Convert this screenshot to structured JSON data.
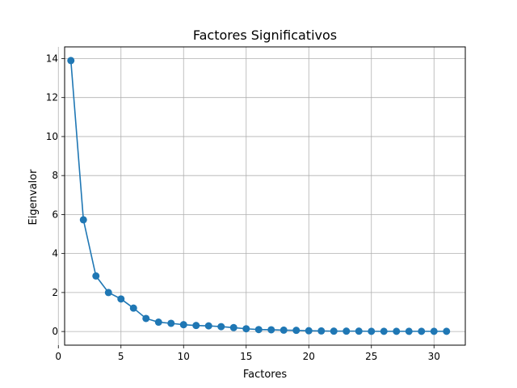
{
  "chart_data": {
    "type": "line",
    "title": "Factores Significativos",
    "xlabel": "Factores",
    "ylabel": "Eigenvalor",
    "xlim": [
      0.5,
      32.5
    ],
    "ylim": [
      -0.7,
      14.6
    ],
    "xticks": [
      0,
      5,
      10,
      15,
      20,
      25,
      30
    ],
    "yticks": [
      0,
      2,
      4,
      6,
      8,
      10,
      12,
      14
    ],
    "grid": true,
    "marker": "circle",
    "series": [
      {
        "color": "#1f77b4",
        "x": [
          1,
          2,
          3,
          4,
          5,
          6,
          7,
          8,
          9,
          10,
          11,
          12,
          13,
          14,
          15,
          16,
          17,
          18,
          19,
          20,
          21,
          22,
          23,
          24,
          25,
          26,
          27,
          28,
          29,
          30,
          31
        ],
        "values": [
          13.9,
          5.73,
          2.85,
          2.0,
          1.67,
          1.2,
          0.67,
          0.48,
          0.42,
          0.35,
          0.31,
          0.29,
          0.25,
          0.2,
          0.14,
          0.1,
          0.09,
          0.07,
          0.06,
          0.04,
          0.03,
          0.02,
          0.02,
          0.02,
          0.01,
          0.01,
          0.01,
          0.01,
          0.01,
          0.01,
          0.01
        ]
      }
    ]
  }
}
